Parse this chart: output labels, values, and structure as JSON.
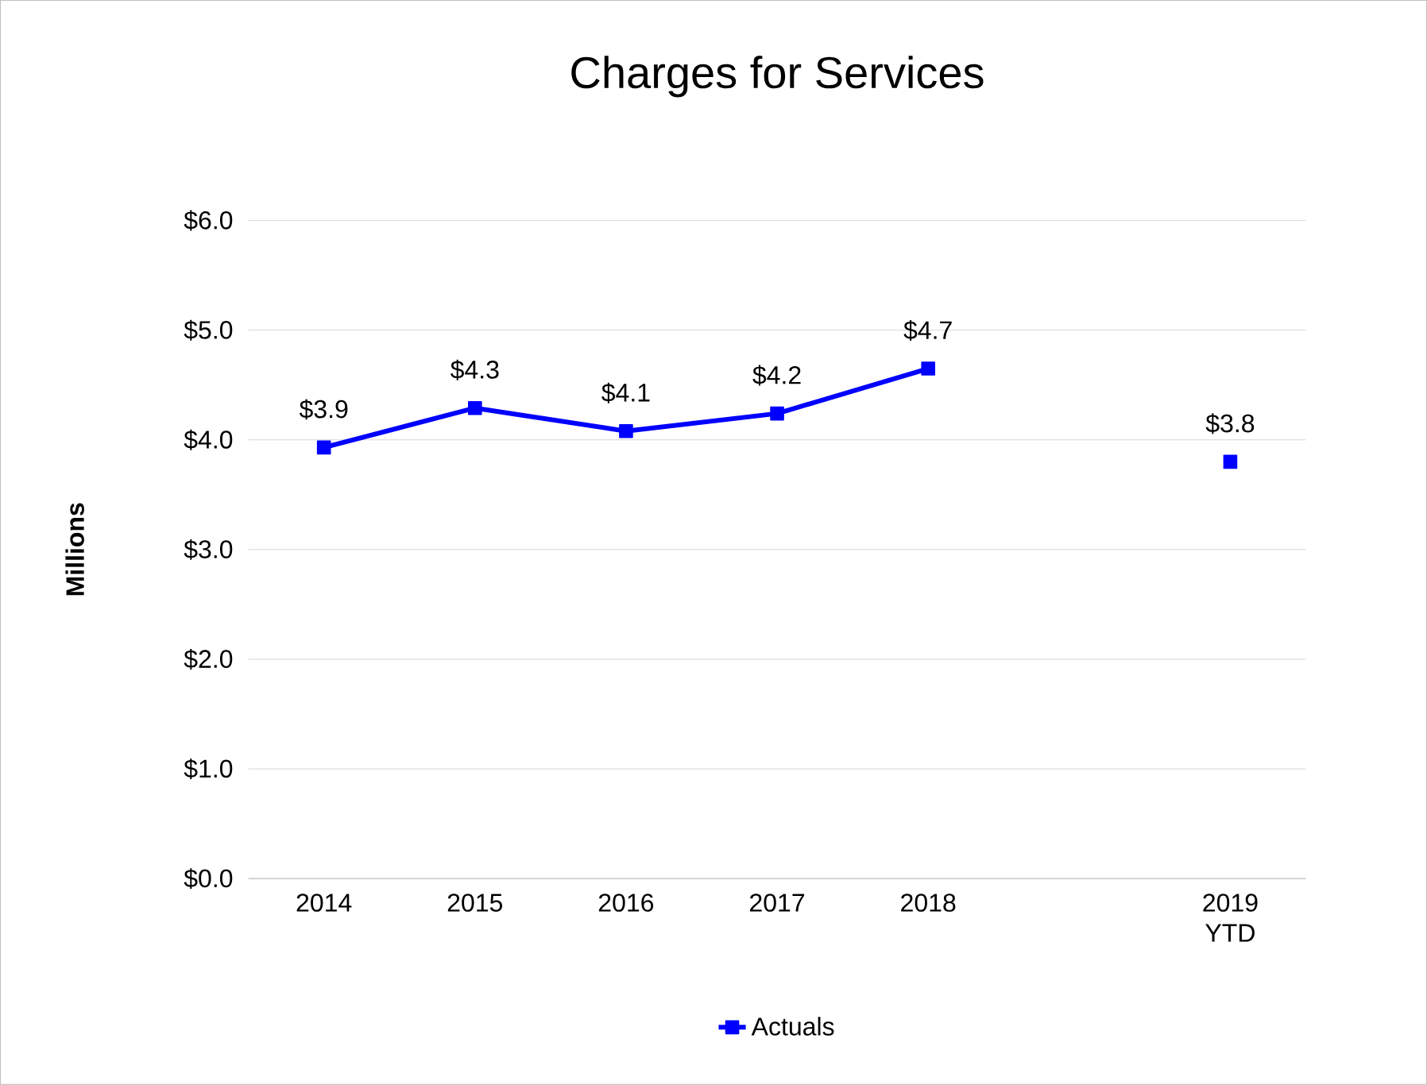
{
  "chart_data": {
    "type": "line",
    "title": "Charges for Services",
    "ylabel": "Millions",
    "categories": [
      "2014",
      "2015",
      "2016",
      "2017",
      "2018",
      null,
      "2019 YTD"
    ],
    "series": [
      {
        "name": "Actuals",
        "color": "#0000ff",
        "values": [
          3.93,
          4.29,
          4.08,
          4.24,
          4.65,
          null,
          3.8
        ],
        "value_labels": [
          "$3.9",
          "$4.3",
          "$4.1",
          "$4.2",
          "$4.7",
          null,
          "$3.8"
        ]
      }
    ],
    "ylim": [
      0,
      6
    ],
    "yticks": [
      {
        "value": 0,
        "label": "$0.0"
      },
      {
        "value": 1,
        "label": "$1.0"
      },
      {
        "value": 2,
        "label": "$2.0"
      },
      {
        "value": 3,
        "label": "$3.0"
      },
      {
        "value": 4,
        "label": "$4.0"
      },
      {
        "value": 5,
        "label": "$5.0"
      },
      {
        "value": 6,
        "label": "$6.0"
      }
    ],
    "grid": "y",
    "legend": "bottom",
    "marker": "square",
    "line_style": "solid"
  }
}
